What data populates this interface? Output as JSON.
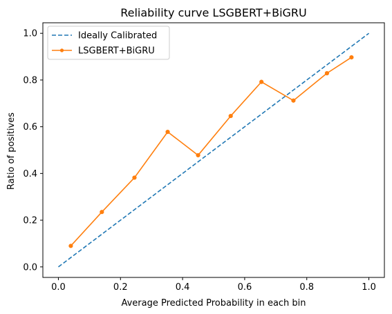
{
  "chart_data": {
    "type": "line",
    "title": "Reliability curve LSGBERT+BiGRU",
    "xlabel": "Average Predicted Probability in each bin",
    "ylabel": "Ratio of positives",
    "xlim": [
      -0.05,
      1.05
    ],
    "ylim": [
      -0.045,
      1.045
    ],
    "xticks": [
      0.0,
      0.2,
      0.4,
      0.6,
      0.8,
      1.0
    ],
    "xtick_labels": [
      "0.0",
      "0.2",
      "0.4",
      "0.6",
      "0.8",
      "1.0"
    ],
    "yticks": [
      0.0,
      0.2,
      0.4,
      0.6,
      0.8,
      1.0
    ],
    "ytick_labels": [
      "0.0",
      "0.2",
      "0.4",
      "0.6",
      "0.8",
      "1.0"
    ],
    "grid": false,
    "legend_position": "top-left",
    "series": [
      {
        "name": "Ideally Calibrated",
        "style": "dashed",
        "color": "#1f77b4",
        "x": [
          0.0,
          1.0
        ],
        "y": [
          0.0,
          1.0
        ]
      },
      {
        "name": "LSGBERT+BiGRU",
        "style": "solid-markers",
        "color": "#ff7f0e",
        "x": [
          0.04,
          0.14,
          0.245,
          0.352,
          0.45,
          0.555,
          0.654,
          0.757,
          0.865,
          0.944
        ],
        "y": [
          0.09,
          0.235,
          0.382,
          0.578,
          0.478,
          0.646,
          0.792,
          0.712,
          0.829,
          0.897
        ]
      }
    ]
  }
}
